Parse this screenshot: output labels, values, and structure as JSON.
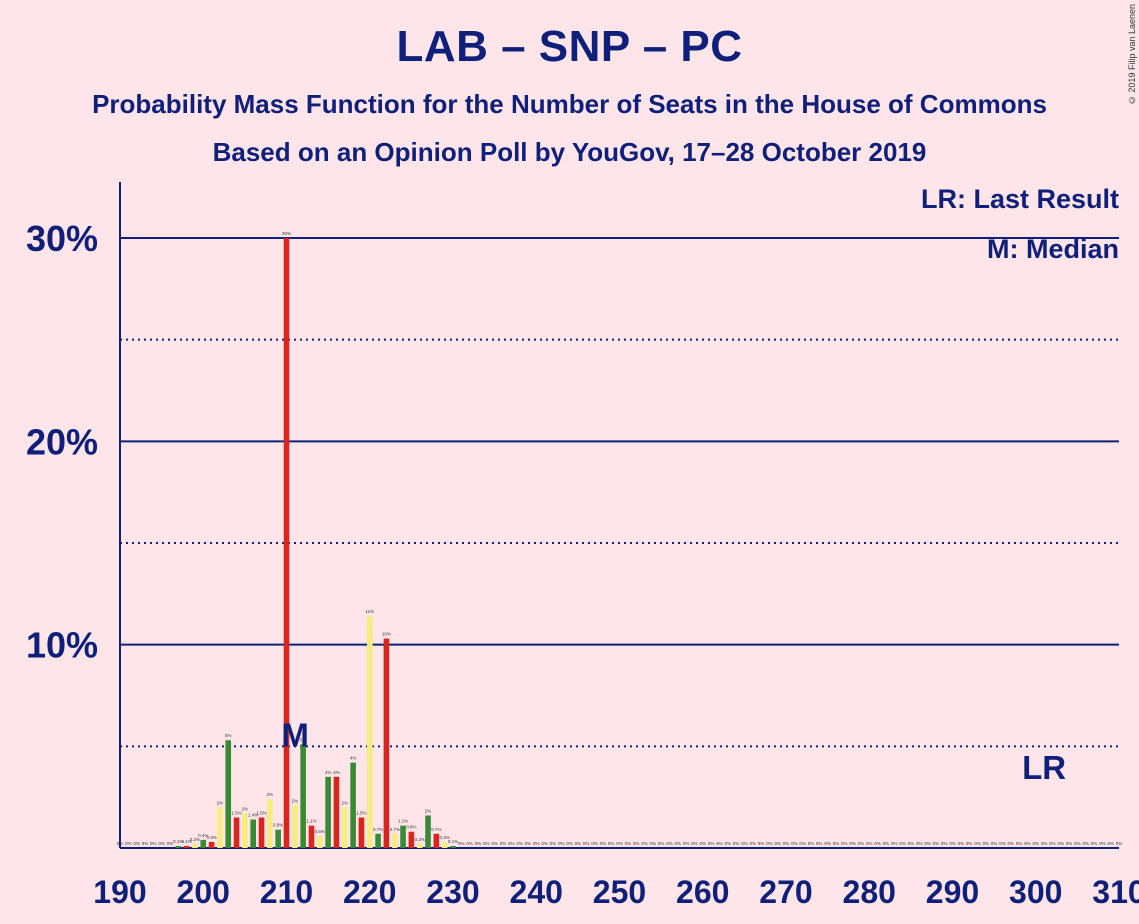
{
  "title": "LAB – SNP – PC",
  "subtitle": "Probability Mass Function for the Number of Seats in the House of Commons",
  "subtitle2": "Based on an Opinion Poll by YouGov, 17–28 October 2019",
  "copyright": "© 2019 Filip van Laenen",
  "legend": {
    "last_result": "LR: Last Result",
    "median": "M: Median"
  },
  "colors": {
    "background": "#fde5ea",
    "text": "#10207a",
    "red": "#d9251d",
    "green": "#3a8a35",
    "yellow": "#f7ec80"
  },
  "chart_data": {
    "type": "bar",
    "xlim": [
      190,
      310
    ],
    "ylim": [
      0,
      32
    ],
    "x_ticks": [
      190,
      200,
      210,
      220,
      230,
      240,
      250,
      260,
      270,
      280,
      290,
      300,
      310
    ],
    "y_ticks_major": [
      10,
      20,
      30
    ],
    "y_tick_labels": [
      "10%",
      "20%",
      "30%"
    ],
    "y_gridlines_dotted": [
      5,
      15,
      25
    ],
    "median": {
      "seat": 212,
      "label": "M"
    },
    "last_result": {
      "seat": 301,
      "label": "LR"
    },
    "bars": [
      {
        "seat": 190,
        "value": 0,
        "label": "0%"
      },
      {
        "seat": 191,
        "value": 0,
        "label": "0%"
      },
      {
        "seat": 192,
        "value": 0,
        "label": "0%"
      },
      {
        "seat": 193,
        "value": 0,
        "label": "0%"
      },
      {
        "seat": 194,
        "value": 0,
        "label": "0%"
      },
      {
        "seat": 195,
        "value": 0,
        "label": "0%"
      },
      {
        "seat": 196,
        "value": 0,
        "label": "0%"
      },
      {
        "seat": 197,
        "value": 0.1,
        "label": "0.1%"
      },
      {
        "seat": 198,
        "value": 0.1,
        "label": "0.1%"
      },
      {
        "seat": 199,
        "value": 0.2,
        "label": "0.2%"
      },
      {
        "seat": 200,
        "value": 0.4,
        "label": "0.4%"
      },
      {
        "seat": 201,
        "value": 0.3,
        "label": "0.3%"
      },
      {
        "seat": 202,
        "value": 2,
        "label": "2%"
      },
      {
        "seat": 203,
        "value": 5.3,
        "label": "5%"
      },
      {
        "seat": 204,
        "value": 1.5,
        "label": "1.5%"
      },
      {
        "seat": 205,
        "value": 1.7,
        "label": "2%"
      },
      {
        "seat": 206,
        "value": 1.4,
        "label": "1.4%"
      },
      {
        "seat": 207,
        "value": 1.5,
        "label": "1.5%"
      },
      {
        "seat": 208,
        "value": 2.4,
        "label": "2%"
      },
      {
        "seat": 209,
        "value": 0.9,
        "label": "0.9%"
      },
      {
        "seat": 210,
        "value": 30,
        "label": "30%"
      },
      {
        "seat": 211,
        "value": 2.1,
        "label": "2%"
      },
      {
        "seat": 212,
        "value": 5.1,
        "label": "5%"
      },
      {
        "seat": 213,
        "value": 1.1,
        "label": "1.1%"
      },
      {
        "seat": 214,
        "value": 0.6,
        "label": "0.6%"
      },
      {
        "seat": 215,
        "value": 3.5,
        "label": "4%"
      },
      {
        "seat": 216,
        "value": 3.5,
        "label": "4%"
      },
      {
        "seat": 217,
        "value": 2,
        "label": "2%"
      },
      {
        "seat": 218,
        "value": 4.2,
        "label": "4%"
      },
      {
        "seat": 219,
        "value": 1.5,
        "label": "1.5%"
      },
      {
        "seat": 220,
        "value": 11.4,
        "label": "11%"
      },
      {
        "seat": 221,
        "value": 0.7,
        "label": "0.7%"
      },
      {
        "seat": 222,
        "value": 10.3,
        "label": "10%"
      },
      {
        "seat": 223,
        "value": 0.7,
        "label": "0.7%"
      },
      {
        "seat": 224,
        "value": 1.1,
        "label": "1.1%"
      },
      {
        "seat": 225,
        "value": 0.8,
        "label": "0.8%"
      },
      {
        "seat": 226,
        "value": 0.2,
        "label": "0.2%"
      },
      {
        "seat": 227,
        "value": 1.6,
        "label": "2%"
      },
      {
        "seat": 228,
        "value": 0.7,
        "label": "0.7%"
      },
      {
        "seat": 229,
        "value": 0.3,
        "label": "0.3%"
      },
      {
        "seat": 230,
        "value": 0.1,
        "label": "0.1%"
      }
    ],
    "zero_labels_from": 231,
    "zero_labels_to": 310,
    "zero_label": "0%"
  }
}
